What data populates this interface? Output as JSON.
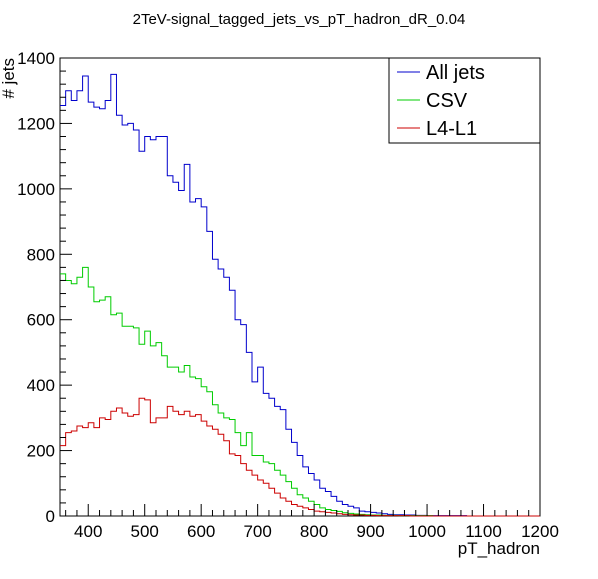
{
  "chart_data": {
    "type": "line",
    "title": "2TeV-signal_tagged_jets_vs_pT_hadron_dR_0.04",
    "xlabel": "pT_hadron",
    "ylabel": "# jets",
    "xlim": [
      350,
      1200
    ],
    "ylim": [
      0,
      1400
    ],
    "x_ticks": [
      400,
      500,
      600,
      700,
      800,
      900,
      1000,
      1100,
      1200
    ],
    "y_ticks": [
      0,
      200,
      400,
      600,
      800,
      1000,
      1200,
      1400
    ],
    "bin_width": 10,
    "legend_position": "top-right",
    "grid": false,
    "series": [
      {
        "name": "All jets",
        "color": "#0000cc",
        "values": [
          1255,
          1300,
          1270,
          1300,
          1345,
          1265,
          1250,
          1245,
          1270,
          1350,
          1225,
          1195,
          1200,
          1180,
          1115,
          1160,
          1150,
          1160,
          1160,
          1040,
          1020,
          995,
          1075,
          960,
          970,
          945,
          870,
          785,
          755,
          730,
          690,
          600,
          585,
          500,
          410,
          455,
          375,
          360,
          335,
          325,
          265,
          225,
          185,
          150,
          130,
          110,
          85,
          75,
          60,
          45,
          35,
          30,
          25,
          15,
          13,
          11,
          9,
          7,
          5,
          4,
          4,
          3,
          3,
          2,
          2,
          1,
          1,
          1,
          1,
          1,
          1,
          1,
          0,
          0,
          0,
          0,
          0,
          0,
          0,
          0,
          0,
          0,
          0,
          0,
          0
        ]
      },
      {
        "name": "CSV",
        "color": "#00cc00",
        "values": [
          740,
          720,
          710,
          730,
          760,
          700,
          655,
          660,
          670,
          615,
          620,
          580,
          580,
          575,
          525,
          565,
          520,
          530,
          490,
          455,
          455,
          440,
          460,
          425,
          420,
          395,
          380,
          340,
          315,
          300,
          295,
          255,
          215,
          255,
          185,
          185,
          165,
          160,
          140,
          125,
          105,
          85,
          65,
          55,
          45,
          35,
          25,
          20,
          17,
          14,
          10,
          8,
          6,
          5,
          4,
          3,
          3,
          2,
          2,
          2,
          1,
          1,
          1,
          1,
          1,
          1,
          0,
          0,
          0,
          0,
          0,
          0,
          0,
          0,
          0,
          0,
          0,
          0,
          0,
          0,
          0,
          0,
          0,
          0,
          0
        ]
      },
      {
        "name": "L4-L1",
        "color": "#cc0000",
        "values": [
          215,
          255,
          260,
          275,
          270,
          285,
          270,
          300,
          295,
          320,
          330,
          315,
          305,
          310,
          360,
          355,
          285,
          300,
          300,
          335,
          320,
          310,
          320,
          305,
          310,
          290,
          275,
          265,
          250,
          230,
          190,
          185,
          160,
          140,
          125,
          110,
          100,
          85,
          70,
          55,
          45,
          35,
          30,
          25,
          20,
          15,
          13,
          11,
          9,
          7,
          5,
          4,
          3,
          3,
          2,
          2,
          1,
          1,
          1,
          1,
          1,
          1,
          0,
          0,
          0,
          0,
          0,
          0,
          0,
          0,
          0,
          0,
          0,
          0,
          0,
          0,
          0,
          0,
          0,
          0,
          0,
          0,
          0,
          0,
          0
        ]
      }
    ]
  }
}
